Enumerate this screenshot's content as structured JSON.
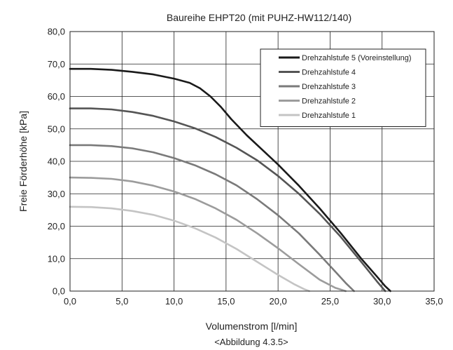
{
  "chart_data": {
    "type": "line",
    "title": "Baureihe EHPT20 (mit PUHZ-HW112/140)",
    "xlabel": "Volumenstrom [l/min]",
    "ylabel": "Freie Förderhöhe [kPa]",
    "caption": "<Abbildung 4.3.5>",
    "xlim": [
      0,
      35
    ],
    "ylim": [
      0,
      80
    ],
    "xticks": [
      "0,0",
      "5,0",
      "10,0",
      "15,0",
      "20,0",
      "25,0",
      "30,0",
      "35,0"
    ],
    "yticks": [
      "0,0",
      "10,0",
      "20,0",
      "30,0",
      "40,0",
      "50,0",
      "60,0",
      "70,0",
      "80,0"
    ],
    "grid": true,
    "legend_position": "top-right",
    "series": [
      {
        "name": "Drehzahlstufe 5 (Voreinstellung)",
        "color": "#1a1a1a",
        "x": [
          0,
          2,
          4,
          6,
          8,
          10,
          11.5,
          12.5,
          13.5,
          14.5,
          15.5,
          17,
          18.5,
          20,
          22,
          24,
          26,
          28,
          29.5,
          30.3,
          30.8
        ],
        "y": [
          68.5,
          68.5,
          68.2,
          67.6,
          66.8,
          65.5,
          64.2,
          62.5,
          60,
          56.8,
          53,
          48,
          43.5,
          39,
          32.5,
          25.5,
          18,
          10,
          4.5,
          1.5,
          0
        ]
      },
      {
        "name": "Drehzahlstufe 4",
        "color": "#555555",
        "x": [
          0,
          2,
          4,
          6,
          8,
          10,
          12,
          14,
          16,
          18,
          20,
          22,
          24,
          26,
          28,
          29.5,
          30.3
        ],
        "y": [
          56.3,
          56.3,
          56.0,
          55.2,
          54.0,
          52.3,
          50.2,
          47.5,
          44.2,
          40.3,
          35.5,
          30,
          23.8,
          16.8,
          9,
          3,
          0
        ]
      },
      {
        "name": "Drehzahlstufe 3",
        "color": "#7a7a7a",
        "x": [
          0,
          2,
          4,
          6,
          8,
          10,
          12,
          14,
          16,
          18,
          20,
          22,
          24,
          25.5,
          26.5,
          27.3
        ],
        "y": [
          45.0,
          45.0,
          44.7,
          44.0,
          42.8,
          41.0,
          38.8,
          36.0,
          32.6,
          28.3,
          23.4,
          17.8,
          11.2,
          6,
          2.5,
          0
        ]
      },
      {
        "name": "Drehzahlstufe 2",
        "color": "#9c9c9c",
        "x": [
          0,
          2,
          4,
          6,
          8,
          10,
          12,
          14,
          16,
          18,
          20,
          22,
          24,
          25.5,
          26.5
        ],
        "y": [
          35.0,
          34.9,
          34.6,
          33.8,
          32.5,
          30.7,
          28.4,
          25.5,
          22,
          17.8,
          13.2,
          8.3,
          3.5,
          1,
          0
        ]
      },
      {
        "name": "Drehzahlstufe 1",
        "color": "#c4c4c4",
        "x": [
          0,
          2,
          4,
          6,
          8,
          10,
          12,
          14,
          16,
          18,
          20,
          21.5,
          22.5,
          23
        ],
        "y": [
          26.0,
          25.9,
          25.5,
          24.7,
          23.5,
          21.7,
          19.4,
          16.5,
          13,
          9,
          5,
          2.2,
          0.6,
          0
        ]
      }
    ]
  }
}
